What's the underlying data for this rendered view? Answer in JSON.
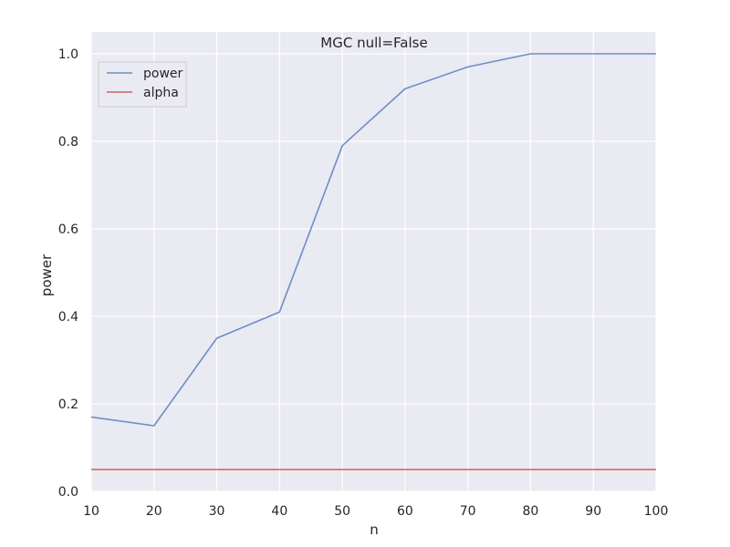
{
  "chart_data": {
    "type": "line",
    "title": "MGC null=False",
    "xlabel": "n",
    "ylabel": "power",
    "xlim": [
      10,
      100
    ],
    "ylim": [
      0,
      1.05
    ],
    "xticks": [
      10,
      20,
      30,
      40,
      50,
      60,
      70,
      80,
      90,
      100
    ],
    "yticks": [
      0.0,
      0.2,
      0.4,
      0.6,
      0.8,
      1.0
    ],
    "xtick_labels": [
      "10",
      "20",
      "30",
      "40",
      "50",
      "60",
      "70",
      "80",
      "90",
      "100"
    ],
    "ytick_labels": [
      "0.0",
      "0.2",
      "0.4",
      "0.6",
      "0.8",
      "1.0"
    ],
    "grid": true,
    "legend_position": "top-left",
    "x": [
      10,
      20,
      30,
      40,
      50,
      60,
      70,
      80,
      90,
      100
    ],
    "series": [
      {
        "name": "power",
        "color": "#6d8ec6",
        "values": [
          0.17,
          0.15,
          0.35,
          0.41,
          0.79,
          0.92,
          0.97,
          1.0,
          1.0,
          1.0
        ]
      },
      {
        "name": "alpha",
        "color": "#d0605e",
        "values": [
          0.05,
          0.05,
          0.05,
          0.05,
          0.05,
          0.05,
          0.05,
          0.05,
          0.05,
          0.05
        ]
      }
    ],
    "colors": {
      "plot_background": "#eaeaf2",
      "grid": "#ffffff",
      "text": "#262626"
    }
  }
}
